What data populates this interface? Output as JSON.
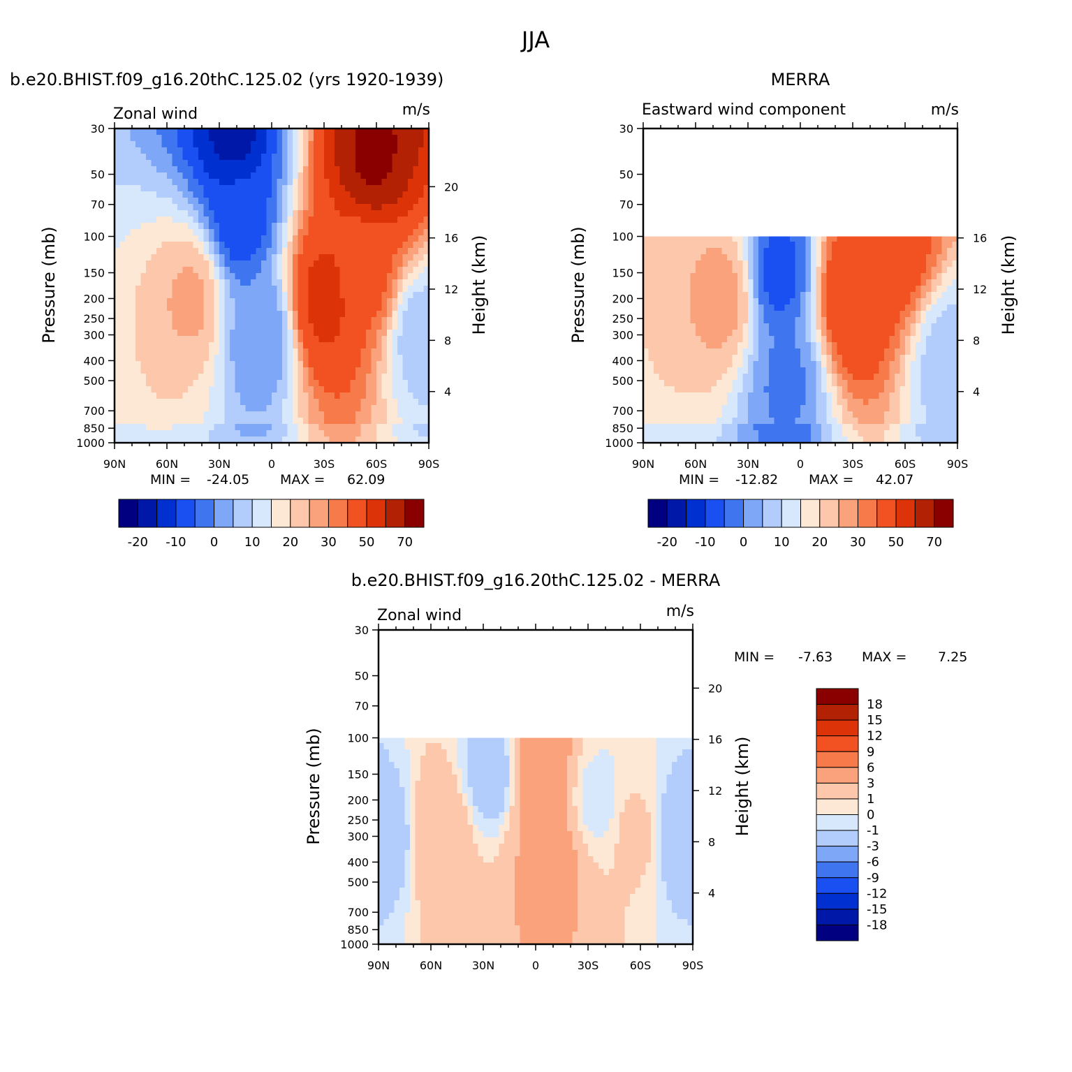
{
  "figure": {
    "title": "JJA"
  },
  "colors": {
    "full": [
      "#000080",
      "#0018a8",
      "#0030d0",
      "#1a4ff2",
      "#3f76f0",
      "#7fa7f8",
      "#b2ccfb",
      "#d8e8fc",
      "#fde8d6",
      "#fcc7ab",
      "#f9a27c",
      "#f77a4a",
      "#f25222",
      "#dc3308",
      "#b22104",
      "#8a0000"
    ],
    "diff": [
      "#000080",
      "#0018a8",
      "#0030d0",
      "#1a4ff2",
      "#3f76f0",
      "#7fa7f8",
      "#b2ccfb",
      "#d8e8fc",
      "#fde8d6",
      "#fcc7ab",
      "#f9a27c",
      "#f77a4a",
      "#f25222",
      "#dc3308",
      "#b22104",
      "#8a0000"
    ]
  },
  "chart_data": [
    {
      "type": "heatmap",
      "id": "model",
      "title": "b.e20.BHIST.f09_g16.20thC.125.02 (yrs 1920-1939)",
      "left_label": "Zonal wind",
      "right_label": "m/s",
      "xlabel": "",
      "ylabel": "Pressure (mb)",
      "y2label": "Height (km)",
      "xticks": [
        "90N",
        "60N",
        "30N",
        "0",
        "30S",
        "60S",
        "90S"
      ],
      "yticks": [
        "30",
        "50",
        "70",
        "100",
        "150",
        "200",
        "250",
        "300",
        "400",
        "500",
        "700",
        "850",
        "1000"
      ],
      "y2ticks": [
        "20",
        "16",
        "12",
        "8",
        "4"
      ],
      "ylim": [
        1000,
        30
      ],
      "top_pressure": 30,
      "min_label": "MIN =",
      "min_value": "-24.05",
      "max_label": "MAX =",
      "max_value": "62.09",
      "colorbar_labels": [
        "-20",
        "-10",
        "0",
        "10",
        "20",
        "30",
        "50",
        "70"
      ],
      "features": [
        {
          "lat": 22,
          "p": 30,
          "v": -22
        },
        {
          "lat": 18,
          "p": 80,
          "v": -14
        },
        {
          "lat": 6,
          "p": 300,
          "v": -5
        },
        {
          "lat": 46,
          "p": 200,
          "v": 21
        },
        {
          "lat": -30,
          "p": 200,
          "v": 43
        },
        {
          "lat": -58,
          "p": 40,
          "v": 62
        },
        {
          "lat": -55,
          "p": 150,
          "v": 32
        },
        {
          "lat": -85,
          "p": 300,
          "v": 2
        }
      ]
    },
    {
      "type": "heatmap",
      "id": "obs",
      "title": "MERRA",
      "left_label": "Eastward wind component",
      "right_label": "m/s",
      "xlabel": "",
      "ylabel": "Pressure (mb)",
      "y2label": "Height (km)",
      "xticks": [
        "90N",
        "60N",
        "30N",
        "0",
        "30S",
        "60S",
        "90S"
      ],
      "yticks": [
        "30",
        "50",
        "70",
        "100",
        "150",
        "200",
        "250",
        "300",
        "400",
        "500",
        "700",
        "850",
        "1000"
      ],
      "y2ticks": [
        "16",
        "12",
        "8",
        "4"
      ],
      "ylim": [
        1000,
        30
      ],
      "top_pressure": 100,
      "min_label": "MIN =",
      "min_value": "-12.82",
      "max_label": "MAX =",
      "max_value": "42.07",
      "colorbar_labels": [
        "-20",
        "-10",
        "0",
        "10",
        "20",
        "30",
        "50",
        "70"
      ],
      "features": [
        {
          "lat": 12,
          "p": 150,
          "v": -12
        },
        {
          "lat": 8,
          "p": 500,
          "v": -6
        },
        {
          "lat": 44,
          "p": 200,
          "v": 22
        },
        {
          "lat": -30,
          "p": 200,
          "v": 40
        },
        {
          "lat": -55,
          "p": 110,
          "v": 35
        },
        {
          "lat": -85,
          "p": 400,
          "v": 2
        }
      ]
    },
    {
      "type": "heatmap",
      "id": "diff",
      "title": "b.e20.BHIST.f09_g16.20thC.125.02 - MERRA",
      "left_label": "Zonal wind",
      "right_label": "m/s",
      "xlabel": "",
      "ylabel": "Pressure (mb)",
      "y2label": "Height (km)",
      "xticks": [
        "90N",
        "60N",
        "30N",
        "0",
        "30S",
        "60S",
        "90S"
      ],
      "yticks": [
        "30",
        "50",
        "70",
        "100",
        "150",
        "200",
        "250",
        "300",
        "400",
        "500",
        "700",
        "850",
        "1000"
      ],
      "y2ticks": [
        "20",
        "16",
        "12",
        "8",
        "4"
      ],
      "ylim": [
        1000,
        30
      ],
      "top_pressure": 100,
      "min_label": "MIN =",
      "min_value": "-7.63",
      "max_label": "MAX =",
      "max_value": "7.25",
      "colorbar_labels": [
        "18",
        "15",
        "12",
        "9",
        "6",
        "3",
        "1",
        "0",
        "-1",
        "-3",
        "-6",
        "-9",
        "-12",
        "-15",
        "-18"
      ],
      "features": [
        {
          "lat": 85,
          "p": 300,
          "v": -2
        },
        {
          "lat": 55,
          "p": 300,
          "v": 3
        },
        {
          "lat": 25,
          "p": 150,
          "v": -2
        },
        {
          "lat": -2,
          "p": 150,
          "v": 6
        },
        {
          "lat": -10,
          "p": 400,
          "v": 4
        },
        {
          "lat": -35,
          "p": 200,
          "v": -0.5
        },
        {
          "lat": -58,
          "p": 300,
          "v": 1.5
        },
        {
          "lat": -80,
          "p": 300,
          "v": -2
        }
      ]
    }
  ]
}
